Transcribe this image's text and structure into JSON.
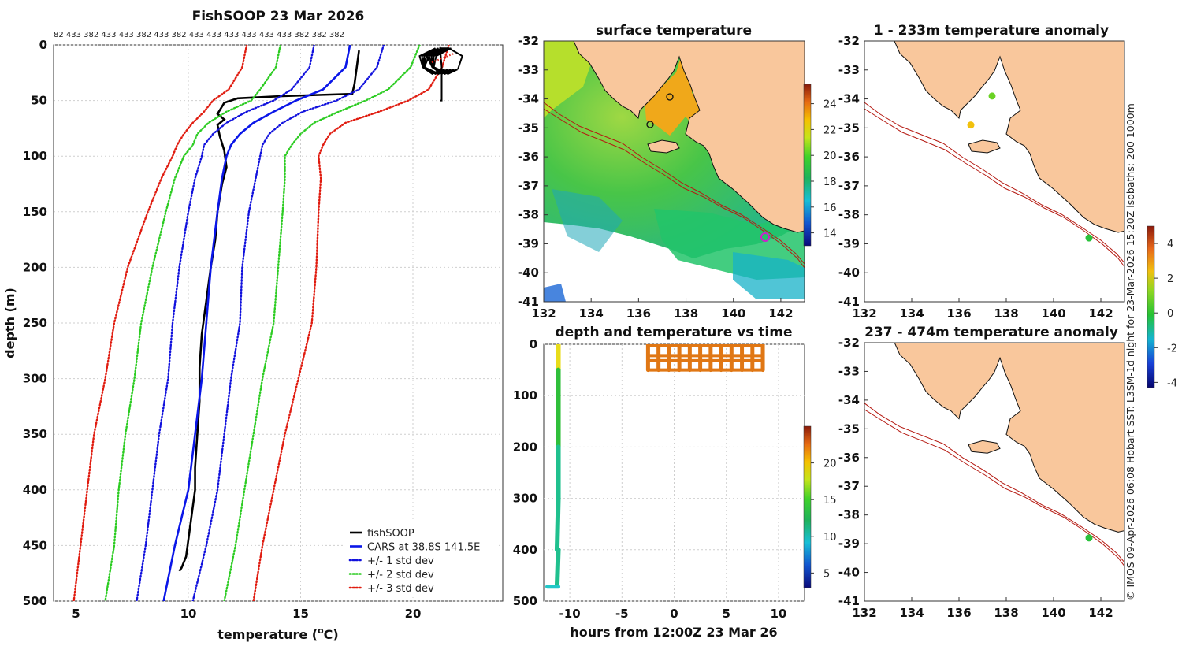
{
  "colors": {
    "land": "#f9c79c",
    "coast": "#111111",
    "isobath": "#b51a12",
    "std1": "#1111dd",
    "std2": "#2ccc22",
    "std3": "#e01b0f",
    "cars": "#0a16e8",
    "fishsoop": "#000000",
    "grid": "#cfcfcf",
    "track": "#e07714"
  },
  "copyright": "© IMOS 09-Apr-2026 06:08 Hobart SST: L3SM-1d night for 23-Mar-2026 15:20Z isobaths: 200  1000m",
  "chart_data": [
    {
      "id": "profile",
      "type": "line",
      "title": "FishSOOP 23 Mar 2026",
      "xlabel": "temperature (°C)",
      "ylabel": "depth (m)",
      "xlim": [
        4,
        24
      ],
      "ylim": [
        500,
        0
      ],
      "xticks": [
        5,
        10,
        15,
        20
      ],
      "yticks": [
        0,
        50,
        100,
        150,
        200,
        250,
        300,
        350,
        400,
        450,
        500
      ],
      "top_counts": "82 433 382 433 433 382 433 382 433 433 433 433 433 433 382 382 382",
      "legend": [
        "fishSOOP",
        "CARS at 38.8S 141.5E",
        "+/- 1 std dev",
        "+/- 2 std dev",
        "+/- 3 std dev"
      ],
      "legend_position": "bottom-right",
      "grid": true,
      "series": [
        {
          "name": "fishSOOP",
          "style": "solid",
          "depth": [
            5,
            20,
            35,
            44,
            46,
            48,
            52,
            62,
            67,
            72,
            82,
            95,
            110,
            125,
            150,
            175,
            200,
            230,
            260,
            290,
            320,
            350,
            380,
            400,
            430,
            460,
            470,
            473
          ],
          "temp": [
            17.6,
            17.5,
            17.4,
            17.3,
            14.2,
            12.2,
            11.6,
            11.3,
            11.6,
            11.3,
            11.4,
            11.6,
            11.7,
            11.5,
            11.3,
            11.2,
            11.0,
            10.8,
            10.6,
            10.5,
            10.5,
            10.4,
            10.3,
            10.3,
            10.1,
            9.9,
            9.7,
            9.6
          ]
        },
        {
          "name": "CARS at 38.8S 141.5E",
          "style": "solid",
          "depth": [
            0,
            20,
            40,
            50,
            60,
            70,
            80,
            90,
            100,
            120,
            150,
            200,
            250,
            300,
            350,
            400,
            450,
            500
          ],
          "temp": [
            17.2,
            17.0,
            16.0,
            14.8,
            13.8,
            12.9,
            12.3,
            11.9,
            11.7,
            11.5,
            11.3,
            11.0,
            10.8,
            10.6,
            10.3,
            10.0,
            9.4,
            8.9
          ]
        },
        {
          "name": "+/- 1 std dev low",
          "style": "dotted",
          "depth": [
            0,
            20,
            40,
            50,
            60,
            70,
            80,
            90,
            100,
            120,
            150,
            200,
            250,
            300,
            350,
            400,
            450,
            500
          ],
          "temp": [
            15.6,
            15.4,
            14.6,
            13.8,
            12.6,
            11.7,
            11.1,
            10.7,
            10.6,
            10.3,
            10.0,
            9.6,
            9.3,
            9.1,
            8.7,
            8.4,
            8.1,
            7.7
          ]
        },
        {
          "name": "+/- 1 std dev high",
          "style": "dotted",
          "depth": [
            0,
            20,
            40,
            50,
            60,
            70,
            80,
            90,
            100,
            120,
            150,
            200,
            250,
            300,
            350,
            400,
            450,
            500
          ],
          "temp": [
            18.7,
            18.4,
            17.6,
            16.6,
            15.1,
            14.2,
            13.6,
            13.3,
            13.2,
            13.0,
            12.7,
            12.4,
            12.3,
            11.9,
            11.6,
            11.3,
            10.8,
            10.2
          ]
        },
        {
          "name": "+/- 2 std dev low",
          "style": "dotted",
          "depth": [
            0,
            20,
            40,
            50,
            60,
            70,
            80,
            90,
            100,
            120,
            150,
            200,
            250,
            300,
            350,
            400,
            450,
            500
          ],
          "temp": [
            14.1,
            13.9,
            13.2,
            12.8,
            11.7,
            10.9,
            10.4,
            10.2,
            9.8,
            9.4,
            9.0,
            8.4,
            7.9,
            7.6,
            7.2,
            6.9,
            6.7,
            6.3
          ]
        },
        {
          "name": "+/- 2 std dev high",
          "style": "dotted",
          "depth": [
            0,
            20,
            40,
            50,
            60,
            70,
            80,
            90,
            100,
            120,
            150,
            200,
            250,
            300,
            350,
            400,
            450,
            500
          ],
          "temp": [
            20.3,
            19.9,
            18.9,
            17.9,
            16.7,
            15.6,
            15.0,
            14.6,
            14.3,
            14.3,
            14.2,
            14.0,
            13.8,
            13.3,
            12.9,
            12.5,
            12.1,
            11.6
          ]
        },
        {
          "name": "+/- 3 std dev low",
          "style": "dotted",
          "depth": [
            0,
            20,
            40,
            50,
            60,
            70,
            80,
            90,
            100,
            120,
            150,
            200,
            250,
            300,
            350,
            400,
            450,
            500
          ],
          "temp": [
            12.6,
            12.4,
            11.8,
            11.1,
            10.7,
            10.2,
            9.8,
            9.5,
            9.3,
            8.8,
            8.2,
            7.3,
            6.7,
            6.3,
            5.8,
            5.5,
            5.2,
            4.9
          ]
        },
        {
          "name": "+/- 3 std dev high",
          "style": "dotted",
          "depth": [
            0,
            20,
            40,
            50,
            60,
            70,
            80,
            90,
            100,
            120,
            150,
            200,
            250,
            300,
            350,
            400,
            450,
            500
          ],
          "temp": [
            21.6,
            21.3,
            20.7,
            19.8,
            18.5,
            17.0,
            16.3,
            16.0,
            15.8,
            15.9,
            15.8,
            15.7,
            15.5,
            14.9,
            14.3,
            13.8,
            13.3,
            12.9
          ]
        }
      ]
    },
    {
      "id": "sst",
      "type": "heatmap",
      "title": "surface temperature",
      "xlim": [
        132,
        143
      ],
      "ylim": [
        -41,
        -32
      ],
      "xticks": [
        132,
        134,
        136,
        138,
        140,
        142
      ],
      "yticks": [
        -32,
        -33,
        -34,
        -35,
        -36,
        -37,
        -38,
        -39,
        -40,
        -41
      ],
      "colorbar_ticks": [
        14,
        16,
        18,
        20,
        22,
        24
      ],
      "clim": [
        13,
        25.5
      ],
      "markers": [
        {
          "lon": 137.4,
          "lat": -33.9
        },
        {
          "lon": 136.5,
          "lat": -34.9
        },
        {
          "lon": 141.5,
          "lat": -38.8
        }
      ]
    },
    {
      "id": "depth_time",
      "type": "scatter",
      "title": "depth and temperature vs time",
      "xlabel": "hours from 12:00Z 23 Mar 26",
      "xlim": [
        -12.5,
        12.5
      ],
      "ylim": [
        500,
        0
      ],
      "xticks": [
        -10,
        -5,
        0,
        5,
        10
      ],
      "yticks": [
        0,
        100,
        200,
        300,
        400,
        500
      ],
      "colorbar_ticks": [
        5,
        10,
        15,
        20
      ],
      "clim": [
        3,
        25
      ],
      "cast_time": -11.1,
      "cast_depth": [
        0,
        20,
        45,
        50,
        100,
        200,
        300,
        400,
        470
      ],
      "cast_temp": [
        17.5,
        17.4,
        17.3,
        12,
        11.6,
        11.0,
        10.5,
        10.3,
        9.6
      ],
      "net_hours": [
        -2.5,
        -1.5,
        -0.5,
        0.5,
        1.5,
        2.5,
        3.5,
        4.5,
        5.5,
        6.5,
        7.5,
        8.5
      ],
      "net_depth": [
        0,
        50
      ]
    },
    {
      "id": "anom1",
      "type": "scatter",
      "title": "1 - 233m temperature anomaly",
      "xlim": [
        132,
        143
      ],
      "ylim": [
        -41,
        -32
      ],
      "xticks": [
        132,
        134,
        136,
        138,
        140,
        142
      ],
      "yticks": [
        -32,
        -33,
        -34,
        -35,
        -36,
        -37,
        -38,
        -39,
        -40,
        -41
      ],
      "colorbar_ticks": [
        -4,
        -2,
        0,
        2,
        4
      ],
      "clim": [
        -4.3,
        5
      ],
      "points": [
        {
          "lon": 137.4,
          "lat": -33.9,
          "anom": 0.8
        },
        {
          "lon": 136.5,
          "lat": -34.9,
          "anom": 2.4
        },
        {
          "lon": 141.5,
          "lat": -38.8,
          "anom": 0.3
        }
      ]
    },
    {
      "id": "anom2",
      "type": "scatter",
      "title": "237 - 474m temperature anomaly",
      "xlim": [
        132,
        143
      ],
      "ylim": [
        -41,
        -32
      ],
      "xticks": [
        132,
        134,
        136,
        138,
        140,
        142
      ],
      "yticks": [
        -32,
        -33,
        -34,
        -35,
        -36,
        -37,
        -38,
        -39,
        -40,
        -41
      ],
      "points": [
        {
          "lon": 141.5,
          "lat": -38.8,
          "anom": 0.3
        }
      ]
    }
  ]
}
